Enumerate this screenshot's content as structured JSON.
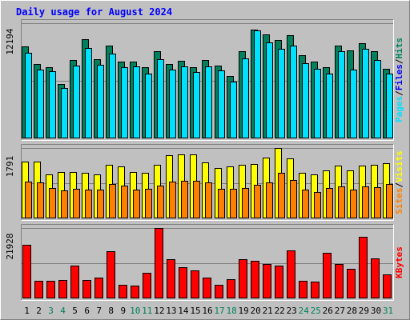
{
  "chart_data": {
    "type": "bar",
    "title": "Daily usage for August 2024",
    "background": "#c0c0c0",
    "weekend_label_color": "#00805c",
    "colors": {
      "hits": "#00805c",
      "files": "#00e0ff",
      "sites": "#ff8000",
      "visits": "#ffff00",
      "kbytes": "#ff0000"
    },
    "days": [
      "1",
      "2",
      "3",
      "4",
      "5",
      "6",
      "7",
      "8",
      "9",
      "10",
      "11",
      "12",
      "13",
      "14",
      "15",
      "16",
      "17",
      "18",
      "19",
      "20",
      "21",
      "22",
      "23",
      "24",
      "25",
      "26",
      "27",
      "28",
      "29",
      "30",
      "31"
    ],
    "weekend_days": [
      "3",
      "4",
      "10",
      "11",
      "17",
      "18",
      "24",
      "25",
      "31"
    ],
    "panels": [
      {
        "name": "hits-files-pages",
        "ymax_label": "12194",
        "ymax": 12194,
        "legend": [
          {
            "text": "Pages",
            "color": "#00e0ff"
          },
          {
            "text": "/",
            "color": "#000000"
          },
          {
            "text": "Files",
            "color": "#0000ff"
          },
          {
            "text": "/",
            "color": "#000000"
          },
          {
            "text": "Hits",
            "color": "#00805c"
          }
        ],
        "series": [
          {
            "name": "Hits",
            "color": "#00805c",
            "values": [
              9700,
              7900,
              7500,
              5800,
              8300,
              10500,
              8400,
              9800,
              8100,
              8100,
              7500,
              9200,
              7900,
              8200,
              7500,
              8300,
              7700,
              6600,
              9200,
              11500,
              11000,
              10400,
              10900,
              8800,
              8100,
              7500,
              9800,
              9300,
              10100,
              9200,
              7400
            ]
          },
          {
            "name": "Files",
            "color": "#00e0ff",
            "values": [
              9100,
              7300,
              7100,
              5300,
              7700,
              9600,
              7800,
              9000,
              7500,
              7600,
              6900,
              8400,
              7300,
              7600,
              7000,
              7600,
              7200,
              6000,
              8500,
              11400,
              10200,
              9500,
              9800,
              8000,
              7400,
              6900,
              9200,
              7300,
              9500,
              8300,
              6900
            ]
          }
        ]
      },
      {
        "name": "visits-sites",
        "ymax_label": "1791",
        "ymax": 1791,
        "legend": [
          {
            "text": "Sites",
            "color": "#ff8000"
          },
          {
            "text": "/",
            "color": "#000000"
          },
          {
            "text": "Visits",
            "color": "#ffff00"
          }
        ],
        "series": [
          {
            "name": "Visits",
            "color": "#ffff00",
            "values": [
              1440,
              1440,
              1120,
              1180,
              1180,
              1150,
              1120,
              1360,
              1330,
              1180,
              1150,
              1360,
              1610,
              1620,
              1620,
              1430,
              1280,
              1320,
              1360,
              1390,
              1540,
              1790,
              1530,
              1170,
              1120,
              1230,
              1340,
              1220,
              1340,
              1360,
              1410
            ]
          },
          {
            "name": "Sites",
            "color": "#ff8000",
            "values": [
              940,
              910,
              770,
              710,
              750,
              740,
              730,
              870,
              830,
              740,
              760,
              830,
              930,
              950,
              960,
              910,
              750,
              760,
              770,
              860,
              920,
              1150,
              970,
              740,
              670,
              770,
              820,
              740,
              820,
              790,
              870
            ]
          }
        ]
      },
      {
        "name": "kbytes",
        "ymax_label": "21928",
        "ymax": 21928,
        "legend": [
          {
            "text": "KBytes",
            "color": "#ff0000"
          }
        ],
        "series": [
          {
            "name": "KBytes",
            "color": "#ff0000",
            "values": [
              16800,
              5600,
              5600,
              5800,
              10200,
              5800,
              6600,
              14700,
              4300,
              3900,
              7900,
              21900,
              12300,
              9700,
              8800,
              6600,
              4200,
              6000,
              12100,
              11800,
              10600,
              10300,
              14900,
              5600,
              5200,
              14300,
              10700,
              9100,
              19300,
              12500,
              7400
            ]
          }
        ]
      }
    ]
  }
}
